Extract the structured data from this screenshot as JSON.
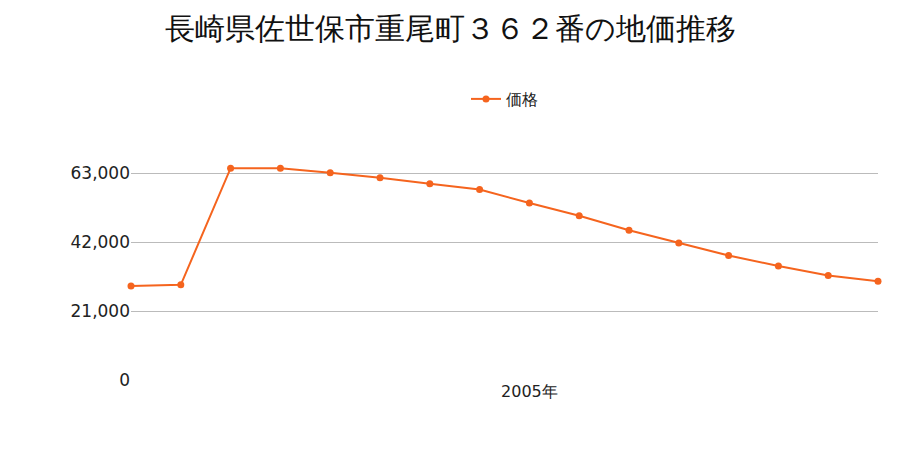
{
  "chart_data": {
    "type": "line",
    "title": "長崎県佐世保市重尾町３６２番の地価推移",
    "categories": [
      null,
      null,
      null,
      null,
      null,
      null,
      null,
      null,
      "2005年",
      null,
      null,
      null,
      null,
      null,
      null,
      null
    ],
    "series": [
      {
        "name": "価格",
        "color": "#f5641e",
        "values": [
          28600,
          29000,
          64500,
          64500,
          63100,
          61600,
          59800,
          58000,
          53900,
          50000,
          45600,
          41700,
          37900,
          34700,
          31800,
          30100
        ]
      }
    ],
    "ylim": [
      0,
      67000
    ],
    "yticks": [
      0,
      {
        "value": 21000,
        "label": "21,000"
      },
      {
        "value": 42000,
        "label": "42,000"
      },
      {
        "value": 63000,
        "label": "63,000"
      }
    ],
    "grid": true,
    "legend": "top",
    "marker": "circle"
  }
}
